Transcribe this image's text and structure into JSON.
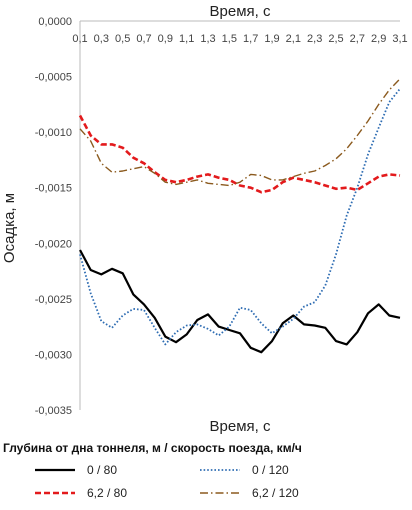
{
  "chart_data": {
    "type": "line",
    "xlabel_top": "Время, с",
    "xlabel_bottom": "Время, с",
    "ylabel": "Осадка, м",
    "x_ticks": [
      "0,1",
      "0,3",
      "0,5",
      "0,7",
      "0,9",
      "1,1",
      "1,3",
      "1,5",
      "1,7",
      "1,9",
      "2,1",
      "2,3",
      "2,5",
      "2,7",
      "2,9",
      "3,1"
    ],
    "y_ticks": [
      "0,0000",
      "-0,0005",
      "-0,0010",
      "-0,0015",
      "-0,0020",
      "-0,0025",
      "-0,0030",
      "-0,0035"
    ],
    "xlim": [
      0.1,
      3.1
    ],
    "ylim": [
      -0.0035,
      0.0
    ],
    "grid": false,
    "legend_title": "Глубина от дна тоннеля, м / скорость поезда, км/ч",
    "legend_position": "bottom",
    "series": [
      {
        "name": "0 / 80",
        "color": "#000000",
        "dash": "solid",
        "x": [
          0.1,
          0.2,
          0.3,
          0.4,
          0.5,
          0.6,
          0.7,
          0.8,
          0.9,
          1.0,
          1.1,
          1.2,
          1.3,
          1.4,
          1.5,
          1.6,
          1.7,
          1.8,
          1.9,
          2.0,
          2.1,
          2.2,
          2.3,
          2.4,
          2.5,
          2.6,
          2.7,
          2.8,
          2.9,
          3.0,
          3.1
        ],
        "y": [
          -0.00206,
          -0.00224,
          -0.00228,
          -0.00223,
          -0.00227,
          -0.00246,
          -0.00255,
          -0.00267,
          -0.00284,
          -0.00289,
          -0.00282,
          -0.00269,
          -0.00264,
          -0.00275,
          -0.00278,
          -0.00281,
          -0.00294,
          -0.00298,
          -0.00288,
          -0.00272,
          -0.00265,
          -0.00273,
          -0.00274,
          -0.00276,
          -0.00288,
          -0.00291,
          -0.0028,
          -0.00263,
          -0.00255,
          -0.00265,
          -0.00267
        ]
      },
      {
        "name": "0 / 120",
        "color": "#2f6db3",
        "dash": "dotted",
        "x": [
          0.1,
          0.2,
          0.3,
          0.4,
          0.5,
          0.6,
          0.7,
          0.8,
          0.9,
          1.0,
          1.1,
          1.2,
          1.3,
          1.4,
          1.5,
          1.6,
          1.7,
          1.8,
          1.9,
          2.0,
          2.1,
          2.2,
          2.3,
          2.4,
          2.5,
          2.6,
          2.7,
          2.8,
          2.9,
          3.0,
          3.1
        ],
        "y": [
          -0.0021,
          -0.00245,
          -0.0027,
          -0.00276,
          -0.00265,
          -0.00259,
          -0.0026,
          -0.00276,
          -0.00291,
          -0.0028,
          -0.00274,
          -0.00273,
          -0.00277,
          -0.00283,
          -0.00275,
          -0.00258,
          -0.0026,
          -0.00272,
          -0.00281,
          -0.00275,
          -0.00268,
          -0.00257,
          -0.00253,
          -0.00238,
          -0.0021,
          -0.00175,
          -0.0015,
          -0.0012,
          -0.00096,
          -0.00073,
          -0.00061
        ]
      },
      {
        "name": "6,2 / 80",
        "color": "#e31a1c",
        "dash": "dashed",
        "x": [
          0.1,
          0.2,
          0.3,
          0.4,
          0.5,
          0.6,
          0.7,
          0.8,
          0.9,
          1.0,
          1.1,
          1.2,
          1.3,
          1.4,
          1.5,
          1.6,
          1.7,
          1.8,
          1.9,
          2.0,
          2.1,
          2.2,
          2.3,
          2.4,
          2.5,
          2.6,
          2.7,
          2.8,
          2.9,
          3.0,
          3.1
        ],
        "y": [
          -0.00085,
          -0.00103,
          -0.00111,
          -0.00111,
          -0.00114,
          -0.00123,
          -0.00128,
          -0.00136,
          -0.00143,
          -0.00145,
          -0.00143,
          -0.0014,
          -0.00138,
          -0.00141,
          -0.00143,
          -0.00148,
          -0.0015,
          -0.00154,
          -0.00152,
          -0.00145,
          -0.00141,
          -0.00143,
          -0.00145,
          -0.00148,
          -0.00151,
          -0.0015,
          -0.00152,
          -0.00146,
          -0.0014,
          -0.00138,
          -0.00139
        ]
      },
      {
        "name": "6,2 / 120",
        "color": "#8b5a1e",
        "dash": "dashdot",
        "x": [
          0.1,
          0.2,
          0.3,
          0.4,
          0.5,
          0.6,
          0.7,
          0.8,
          0.9,
          1.0,
          1.1,
          1.2,
          1.3,
          1.4,
          1.5,
          1.6,
          1.7,
          1.8,
          1.9,
          2.0,
          2.1,
          2.2,
          2.3,
          2.4,
          2.5,
          2.6,
          2.7,
          2.8,
          2.9,
          3.0,
          3.1
        ],
        "y": [
          -0.00097,
          -0.00108,
          -0.00128,
          -0.00136,
          -0.00135,
          -0.00133,
          -0.00131,
          -0.00137,
          -0.00145,
          -0.00147,
          -0.00145,
          -0.00143,
          -0.00146,
          -0.00147,
          -0.00148,
          -0.00145,
          -0.00138,
          -0.00139,
          -0.00143,
          -0.00143,
          -0.0014,
          -0.00137,
          -0.00135,
          -0.0013,
          -0.00124,
          -0.00115,
          -0.00103,
          -0.0009,
          -0.00075,
          -0.00062,
          -0.00052
        ]
      }
    ]
  }
}
